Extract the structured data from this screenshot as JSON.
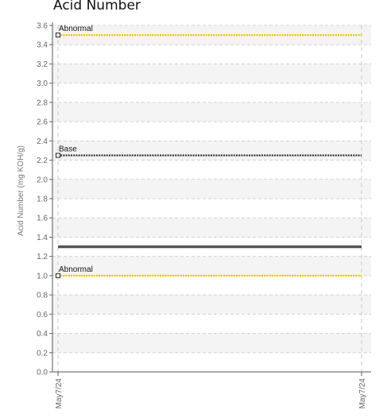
{
  "chart_data": {
    "type": "line",
    "title": "Acid Number",
    "ylabel": "Acid Number (mg KOH/g)",
    "ylim": [
      0,
      3.6
    ],
    "yticks": [
      0.0,
      0.2,
      0.4,
      0.6,
      0.8,
      1.0,
      1.2,
      1.4,
      1.6,
      1.8,
      2.0,
      2.2,
      2.4,
      2.6,
      2.8,
      3.0,
      3.2,
      3.4,
      3.6
    ],
    "ytick_labels": [
      "0.0",
      "0.2",
      "0.4",
      "0.6",
      "0.8",
      "1.0",
      "1.2",
      "1.4",
      "1.6",
      "1.8",
      "2.0",
      "2.2",
      "2.4",
      "2.6",
      "2.8",
      "3.0",
      "3.2",
      "3.4",
      "3.6"
    ],
    "x_labels": [
      "May7/24",
      "May7/24"
    ],
    "grid": true,
    "series": [
      {
        "values": [
          1.3,
          1.3
        ],
        "color": "#555555",
        "style": "solid"
      }
    ],
    "reference_lines": [
      {
        "label": "Abnormal",
        "value": 3.5,
        "color": "#f2c200",
        "style": "dotted"
      },
      {
        "label": "Base",
        "value": 2.25,
        "color": "#333333",
        "style": "dotted"
      },
      {
        "label": "Abnormal",
        "value": 1.0,
        "color": "#f2c200",
        "style": "dotted"
      }
    ]
  }
}
